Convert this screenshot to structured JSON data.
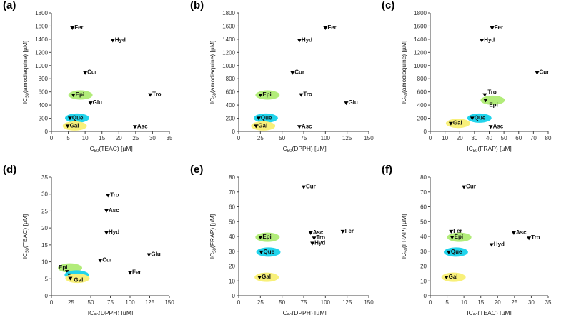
{
  "colors": {
    "Epi": "#b2ec7a",
    "Que": "#22d4ec",
    "Gal": "#f8f07a",
    "marker": "#000000"
  },
  "chart_data": [
    {
      "panel": "(a)",
      "type": "scatter",
      "xlabel": {
        "pre": "IC",
        "sub": "50",
        "post": "(TEAC) [µM]"
      },
      "ylabel": {
        "pre": "IC",
        "sub": "50",
        "post": "(amodiaquine) [µM]"
      },
      "xlim": [
        0,
        35
      ],
      "ylim": [
        0,
        1800
      ],
      "xticks": [
        "0",
        "5",
        "10",
        "15",
        "20",
        "25",
        "30",
        "35"
      ],
      "yticks": [
        "0",
        "200",
        "400",
        "600",
        "800",
        "1000",
        "1200",
        "1400",
        "1600",
        "1800"
      ],
      "points": [
        {
          "label": "Fer",
          "x": 6.2,
          "y": 1540
        },
        {
          "label": "Hyd",
          "x": 18.2,
          "y": 1350
        },
        {
          "label": "Cur",
          "x": 10,
          "y": 860
        },
        {
          "label": "Epi",
          "x": 6.5,
          "y": 520,
          "highlight": "Epi"
        },
        {
          "label": "Tro",
          "x": 29.3,
          "y": 525
        },
        {
          "label": "Glu",
          "x": 11.6,
          "y": 400
        },
        {
          "label": "Que",
          "x": 5.5,
          "y": 170,
          "highlight": "Que"
        },
        {
          "label": "Gal",
          "x": 4.8,
          "y": 50,
          "highlight": "Gal"
        },
        {
          "label": "Asc",
          "x": 24.8,
          "y": 40
        }
      ]
    },
    {
      "panel": "(b)",
      "type": "scatter",
      "xlabel": {
        "pre": "IC",
        "sub": "50",
        "post": "(DPPH) [µM]"
      },
      "ylabel": {
        "pre": "IC",
        "sub": "50",
        "post": "(amodiaquine) [µM]"
      },
      "xlim": [
        0,
        150
      ],
      "ylim": [
        0,
        1800
      ],
      "xticks": [
        "0",
        "25",
        "50",
        "75",
        "100",
        "125",
        "150"
      ],
      "yticks": [
        "0",
        "200",
        "400",
        "600",
        "800",
        "1000",
        "1200",
        "1400",
        "1600",
        "1800"
      ],
      "points": [
        {
          "label": "Fer",
          "x": 100,
          "y": 1540
        },
        {
          "label": "Hyd",
          "x": 70,
          "y": 1350
        },
        {
          "label": "Cur",
          "x": 62,
          "y": 860
        },
        {
          "label": "Epi",
          "x": 25,
          "y": 520,
          "highlight": "Epi"
        },
        {
          "label": "Tro",
          "x": 72,
          "y": 525
        },
        {
          "label": "Glu",
          "x": 124,
          "y": 400
        },
        {
          "label": "Que",
          "x": 23,
          "y": 170,
          "highlight": "Que"
        },
        {
          "label": "Gal",
          "x": 20,
          "y": 50,
          "highlight": "Gal"
        },
        {
          "label": "Asc",
          "x": 70,
          "y": 40
        }
      ]
    },
    {
      "panel": "(c)",
      "type": "scatter",
      "xlabel": {
        "pre": "IC",
        "sub": "50",
        "post": "(FRAP) [µM]"
      },
      "ylabel": {
        "pre": "IC",
        "sub": "50",
        "post": "(amodiaquine) [µM]"
      },
      "xlim": [
        0,
        80
      ],
      "ylim": [
        0,
        1800
      ],
      "xticks": [
        "0",
        "10",
        "20",
        "30",
        "40",
        "50",
        "60",
        "70",
        "80"
      ],
      "yticks": [
        "0",
        "200",
        "400",
        "600",
        "800",
        "1000",
        "1200",
        "1400",
        "1600",
        "1800"
      ],
      "points": [
        {
          "label": "Fer",
          "x": 42,
          "y": 1540
        },
        {
          "label": "Hyd",
          "x": 35,
          "y": 1350
        },
        {
          "label": "Cur",
          "x": 72.5,
          "y": 860
        },
        {
          "label": "Tro",
          "x": 37,
          "y": 525
        },
        {
          "label": "Epi",
          "x": 37.5,
          "y": 440,
          "highlight": "Epi"
        },
        {
          "label": "Que",
          "x": 28.5,
          "y": 170,
          "highlight": "Que"
        },
        {
          "label": "Gal",
          "x": 14,
          "y": 90,
          "highlight": "Gal"
        },
        {
          "label": "Asc",
          "x": 41,
          "y": 40
        }
      ]
    },
    {
      "panel": "(d)",
      "type": "scatter",
      "xlabel": {
        "pre": "IC",
        "sub": "50",
        "post": "(DPPH) [µM]"
      },
      "ylabel": {
        "pre": "IC",
        "sub": "50",
        "post": "(TEAC) [µM]"
      },
      "xlim": [
        0,
        150
      ],
      "ylim": [
        0,
        35
      ],
      "xticks": [
        "0",
        "25",
        "50",
        "75",
        "100",
        "125",
        "150"
      ],
      "yticks": [
        "0",
        "5",
        "10",
        "15",
        "20",
        "25",
        "30",
        "35"
      ],
      "points": [
        {
          "label": "Tro",
          "x": 72,
          "y": 29
        },
        {
          "label": "Asc",
          "x": 70,
          "y": 24.5
        },
        {
          "label": "Hyd",
          "x": 70,
          "y": 18
        },
        {
          "label": "Glu",
          "x": 124,
          "y": 11.5
        },
        {
          "label": "Cur",
          "x": 62,
          "y": 9.8
        },
        {
          "label": "Epi",
          "x": 20,
          "y": 6.5,
          "highlight": "Epi"
        },
        {
          "label": "Fer",
          "x": 100,
          "y": 6.2
        },
        {
          "label": "Que",
          "x": 23,
          "y": 5.5,
          "highlight": "Que"
        },
        {
          "label": "Gal",
          "x": 24,
          "y": 4.5,
          "highlight": "Gal"
        }
      ]
    },
    {
      "panel": "(e)",
      "type": "scatter",
      "xlabel": {
        "pre": "IC",
        "sub": "50",
        "post": "(DPPH) [µM]"
      },
      "ylabel": {
        "pre": "IC",
        "sub": "50",
        "post": "(FRAP) [µM]"
      },
      "xlim": [
        0,
        150
      ],
      "ylim": [
        0,
        80
      ],
      "xticks": [
        "0",
        "25",
        "50",
        "75",
        "100",
        "125",
        "150"
      ],
      "yticks": [
        "0",
        "10",
        "20",
        "30",
        "40",
        "50",
        "60",
        "70",
        "80"
      ],
      "points": [
        {
          "label": "Cur",
          "x": 75,
          "y": 72
        },
        {
          "label": "Fer",
          "x": 120,
          "y": 42
        },
        {
          "label": "Asc",
          "x": 83,
          "y": 41
        },
        {
          "label": "Epi",
          "x": 25,
          "y": 38,
          "highlight": "Epi"
        },
        {
          "label": "Tro",
          "x": 87,
          "y": 37.5
        },
        {
          "label": "Hyd",
          "x": 85,
          "y": 34
        },
        {
          "label": "Que",
          "x": 26,
          "y": 28,
          "highlight": "Que"
        },
        {
          "label": "Gal",
          "x": 24,
          "y": 11,
          "highlight": "Gal"
        }
      ]
    },
    {
      "panel": "(f)",
      "type": "scatter",
      "xlabel": {
        "pre": "IC",
        "sub": "50",
        "post": "(TEAC) [µM]"
      },
      "ylabel": {
        "pre": "IC",
        "sub": "50",
        "post": "(FRAP) [µM]"
      },
      "xlim": [
        0,
        35
      ],
      "ylim": [
        0,
        80
      ],
      "xticks": [
        "0",
        "5",
        "10",
        "15",
        "20",
        "25",
        "30",
        "35"
      ],
      "yticks": [
        "0",
        "10",
        "20",
        "30",
        "40",
        "50",
        "60",
        "70",
        "80"
      ],
      "points": [
        {
          "label": "Cur",
          "x": 10,
          "y": 72
        },
        {
          "label": "Fer",
          "x": 6.2,
          "y": 42
        },
        {
          "label": "Asc",
          "x": 24.8,
          "y": 41
        },
        {
          "label": "Epi",
          "x": 6.5,
          "y": 38,
          "highlight": "Epi"
        },
        {
          "label": "Tro",
          "x": 29.3,
          "y": 37.5
        },
        {
          "label": "Hyd",
          "x": 18.2,
          "y": 33
        },
        {
          "label": "Que",
          "x": 5.5,
          "y": 28,
          "highlight": "Que"
        },
        {
          "label": "Gal",
          "x": 4.8,
          "y": 11,
          "highlight": "Gal"
        }
      ]
    }
  ]
}
